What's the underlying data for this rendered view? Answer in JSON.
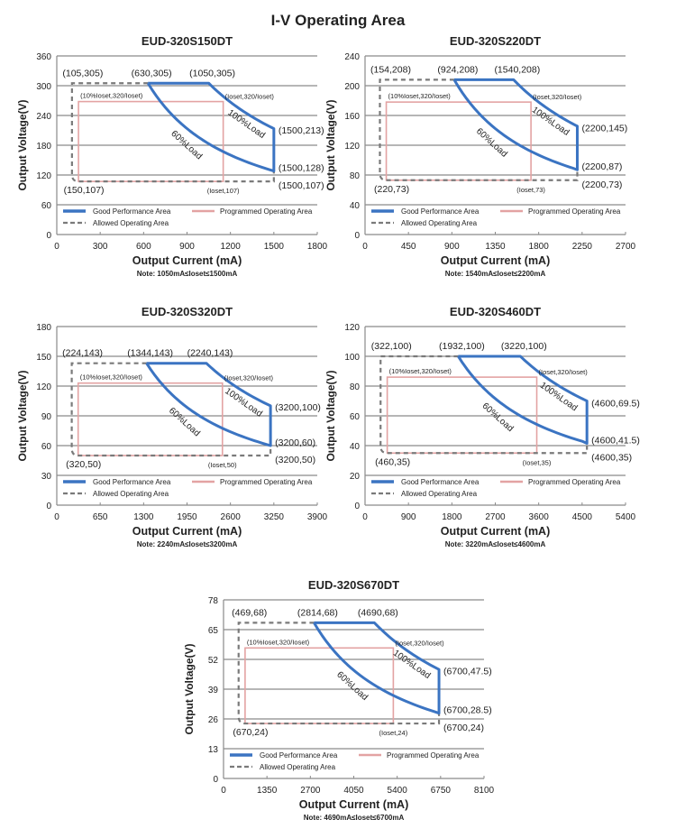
{
  "page_title": "I-V Operating Area",
  "colors": {
    "good": "#3b74c2",
    "programmed": "#e3a3a3",
    "allowed": "#7a7a7a",
    "grid": "#8a8a8a"
  },
  "legend": {
    "good": "Good Performance Area",
    "programmed": "Programmed Operating Area",
    "allowed": "Allowed Operating Area"
  },
  "axis": {
    "ylabel": "Output Voltage(V)",
    "xlabel": "Output Current (mA)"
  },
  "chart_data": [
    {
      "type": "line",
      "title": "EUD-320S150DT",
      "ylim": [
        0,
        360
      ],
      "ystep": 60,
      "xlim": [
        0,
        1800
      ],
      "xstep": 300,
      "yticks": [
        "0",
        "60",
        "120",
        "180",
        "240",
        "300",
        "360"
      ],
      "xticks": [
        "0",
        "300",
        "600",
        "900",
        "1200",
        "1500",
        "1800"
      ],
      "allowed_tl": {
        "label": "(105,305)",
        "i": 105,
        "v": 305
      },
      "allowed_bl": {
        "label": "(150,107)",
        "i": 150,
        "v": 107
      },
      "allowed_br": {
        "label": "(1500,107)",
        "i": 1500,
        "v": 107
      },
      "good_tl": {
        "label": "(630,305)",
        "i": 630,
        "v": 305
      },
      "good_tr": {
        "label": "(1050,305)",
        "i": 1050,
        "v": 305
      },
      "good_rt": {
        "label": "(1500,213)",
        "i": 1500,
        "v": 213
      },
      "good_rb": {
        "label": "(1500,128)",
        "i": 1500,
        "v": 128
      },
      "iset": 1150,
      "prog_top": 268,
      "prog_tl_label": "(10%Ioset,320/Ioset)",
      "prog_tr_label": "(Ioset,320/Ioset)",
      "prog_br_label": "(Ioset,107)",
      "load60": "60%Load",
      "load100": "100%Load",
      "note": "Note:  1050mA≤Ioset≤1500mA"
    },
    {
      "type": "line",
      "title": "EUD-320S220DT",
      "ylim": [
        0,
        240
      ],
      "ystep": 40,
      "xlim": [
        0,
        2700
      ],
      "xstep": 450,
      "yticks": [
        "0",
        "40",
        "80",
        "120",
        "160",
        "200",
        "240"
      ],
      "xticks": [
        "0",
        "450",
        "900",
        "1350",
        "1800",
        "2250",
        "2700"
      ],
      "allowed_tl": {
        "label": "(154,208)",
        "i": 154,
        "v": 208
      },
      "allowed_bl": {
        "label": "(220,73)",
        "i": 220,
        "v": 73
      },
      "allowed_br": {
        "label": "(2200,73)",
        "i": 2200,
        "v": 73
      },
      "good_tl": {
        "label": "(924,208)",
        "i": 924,
        "v": 208
      },
      "good_tr": {
        "label": "(1540,208)",
        "i": 1540,
        "v": 208
      },
      "good_rt": {
        "label": "(2200,145)",
        "i": 2200,
        "v": 145
      },
      "good_rb": {
        "label": "(2200,87)",
        "i": 2200,
        "v": 87
      },
      "iset": 1720,
      "prog_top": 178,
      "prog_tl_label": "(10%Ioset,320/Ioset)",
      "prog_tr_label": "(Ioset,320/Ioset)",
      "prog_br_label": "(Ioset,73)",
      "load60": "60%Load",
      "load100": "100%Load",
      "note": "Note:  1540mA≤Ioset≤2200mA"
    },
    {
      "type": "line",
      "title": "EUD-320S320DT",
      "ylim": [
        0,
        180
      ],
      "ystep": 30,
      "xlim": [
        0,
        3900
      ],
      "xstep": 650,
      "yticks": [
        "0",
        "30",
        "60",
        "90",
        "120",
        "150",
        "180"
      ],
      "xticks": [
        "0",
        "650",
        "1300",
        "1950",
        "2600",
        "3250",
        "3900"
      ],
      "allowed_tl": {
        "label": "(224,143)",
        "i": 224,
        "v": 143
      },
      "allowed_bl": {
        "label": "(320,50)",
        "i": 320,
        "v": 50
      },
      "allowed_br": {
        "label": "(3200,50)",
        "i": 3200,
        "v": 50
      },
      "good_tl": {
        "label": "(1344,143)",
        "i": 1344,
        "v": 143
      },
      "good_tr": {
        "label": "(2240,143)",
        "i": 2240,
        "v": 143
      },
      "good_rt": {
        "label": "(3200,100)",
        "i": 3200,
        "v": 100
      },
      "good_rb": {
        "label": "(3200,60)",
        "i": 3200,
        "v": 60
      },
      "iset": 2480,
      "prog_top": 123,
      "prog_tl_label": "(10%Ioset,320/Ioset)",
      "prog_tr_label": "(Ioset,320/Ioset)",
      "prog_br_label": "(Ioset,50)",
      "load60": "60%Load",
      "load100": "100%Load",
      "note": "Note:  2240mA≤Ioset≤3200mA"
    },
    {
      "type": "line",
      "title": "EUD-320S460DT",
      "ylim": [
        0,
        120
      ],
      "ystep": 20,
      "xlim": [
        0,
        5400
      ],
      "xstep": 900,
      "yticks": [
        "0",
        "20",
        "40",
        "60",
        "80",
        "100",
        "120"
      ],
      "xticks": [
        "0",
        "900",
        "1800",
        "2700",
        "3600",
        "4500",
        "5400"
      ],
      "allowed_tl": {
        "label": "(322,100)",
        "i": 322,
        "v": 100
      },
      "allowed_bl": {
        "label": "(460,35)",
        "i": 460,
        "v": 35
      },
      "allowed_br": {
        "label": "(4600,35)",
        "i": 4600,
        "v": 35
      },
      "good_tl": {
        "label": "(1932,100)",
        "i": 1932,
        "v": 100
      },
      "good_tr": {
        "label": "(3220,100)",
        "i": 3220,
        "v": 100
      },
      "good_rt": {
        "label": "(4600,69.5)",
        "i": 4600,
        "v": 69.5
      },
      "good_rb": {
        "label": "(4600,41.5)",
        "i": 4600,
        "v": 41.5
      },
      "iset": 3560,
      "prog_top": 86,
      "prog_tl_label": "(10%Ioset,320/Ioset)",
      "prog_tr_label": "(Ioset,320/Ioset)",
      "prog_br_label": "(Ioset,35)",
      "load60": "60%Load",
      "load100": "100%Load",
      "note": "Note:  3220mA≤Ioset≤4600mA"
    },
    {
      "type": "line",
      "title": "EUD-320S670DT",
      "ylim": [
        0,
        78
      ],
      "ystep": 13,
      "xlim": [
        0,
        8100
      ],
      "xstep": 1350,
      "yticks": [
        "0",
        "13",
        "26",
        "39",
        "52",
        "65",
        "78"
      ],
      "xticks": [
        "0",
        "1350",
        "2700",
        "4050",
        "5400",
        "6750",
        "8100"
      ],
      "allowed_tl": {
        "label": "(469,68)",
        "i": 469,
        "v": 68
      },
      "allowed_bl": {
        "label": "(670,24)",
        "i": 670,
        "v": 24
      },
      "allowed_br": {
        "label": "(6700,24)",
        "i": 6700,
        "v": 24
      },
      "good_tl": {
        "label": "(2814,68)",
        "i": 2814,
        "v": 68
      },
      "good_tr": {
        "label": "(4690,68)",
        "i": 4690,
        "v": 68
      },
      "good_rt": {
        "label": "(6700,47.5)",
        "i": 6700,
        "v": 47.5
      },
      "good_rb": {
        "label": "(6700,28.5)",
        "i": 6700,
        "v": 28.5
      },
      "iset": 5280,
      "prog_top": 57,
      "prog_tl_label": "(10%Ioset,320/Ioset)",
      "prog_tr_label": "(Ioset,320/Ioset)",
      "prog_br_label": "(Ioset,24)",
      "load60": "60%Load",
      "load100": "100%Load",
      "note": "Note:  4690mA≤Ioset≤6700mA"
    }
  ]
}
